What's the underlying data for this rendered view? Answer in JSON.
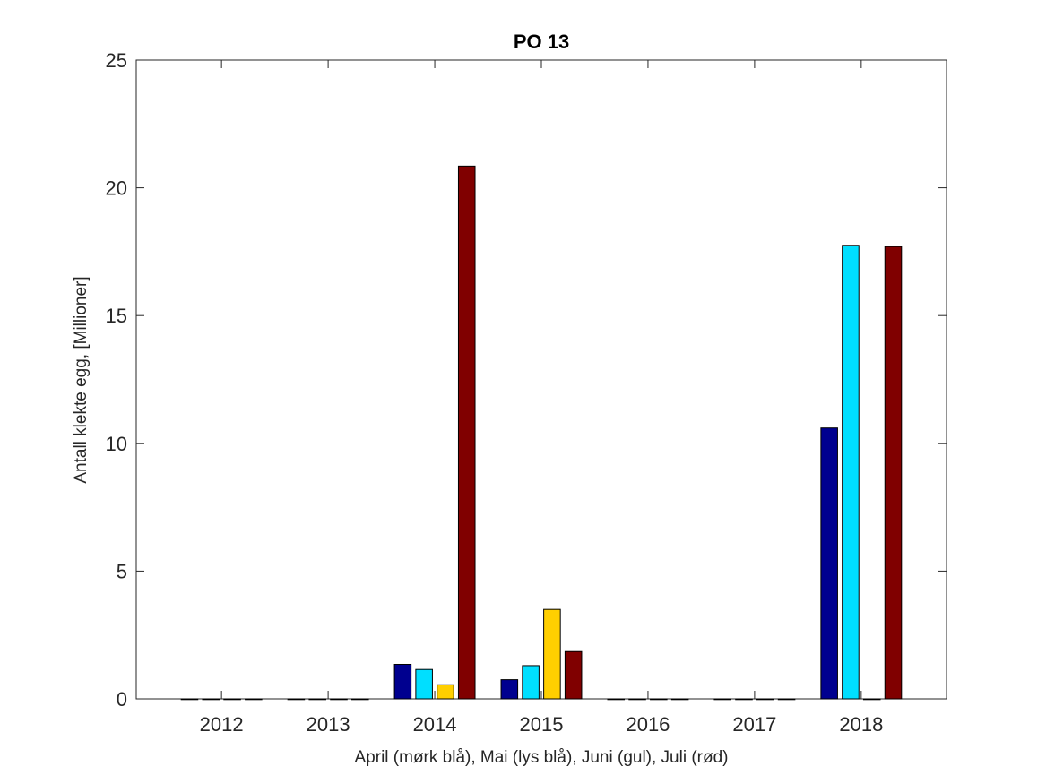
{
  "chart_data": {
    "type": "bar",
    "title": "PO 13",
    "xlabel": "April (mørk blå), Mai (lys blå), Juni (gul), Juli (rød)",
    "ylabel": "Antall klekte egg, [Millioner]",
    "categories": [
      "2012",
      "2013",
      "2014",
      "2015",
      "2016",
      "2017",
      "2018"
    ],
    "series": [
      {
        "color": "#00008f",
        "values": [
          0,
          0,
          1.35,
          0.75,
          0,
          0,
          10.6
        ]
      },
      {
        "color": "#00dfff",
        "values": [
          0,
          0,
          1.15,
          1.3,
          0,
          0,
          17.75
        ]
      },
      {
        "color": "#ffcf00",
        "values": [
          0,
          0,
          0.55,
          3.5,
          0,
          0,
          0
        ]
      },
      {
        "color": "#800000",
        "values": [
          0,
          0,
          20.85,
          1.85,
          0,
          0,
          17.7
        ]
      }
    ],
    "ylim": [
      0,
      25
    ],
    "yticks": [
      "0",
      "5",
      "10",
      "15",
      "20",
      "25"
    ],
    "grid": false,
    "legend": "none"
  }
}
